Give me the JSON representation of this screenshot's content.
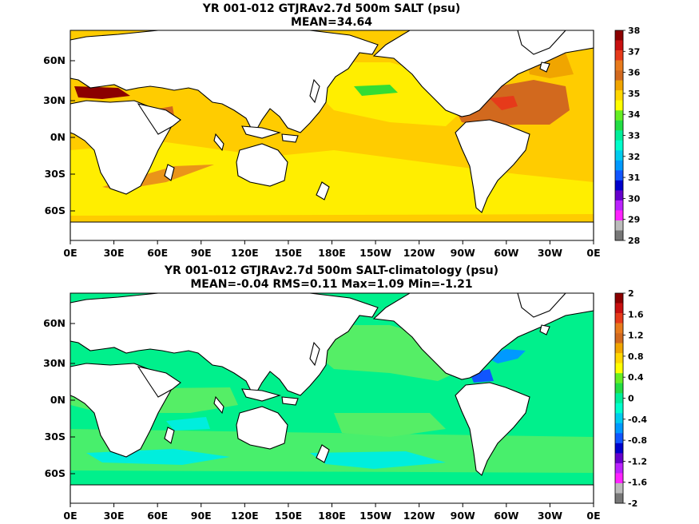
{
  "top_panel": {
    "title": "YR 001-012 GTJRAv2.7d 500m SALT (psu)",
    "subtitle": "MEAN=34.64",
    "lat_labels": [
      "60N",
      "30N",
      "0N",
      "30S",
      "60S"
    ],
    "lon_labels": [
      "0E",
      "30E",
      "60E",
      "90E",
      "120E",
      "150E",
      "180E",
      "150W",
      "120W",
      "90W",
      "60W",
      "30W",
      "0E"
    ],
    "colorbar": {
      "labels": [
        "38",
        "37",
        "36",
        "35",
        "34",
        "33",
        "32",
        "31",
        "30",
        "29",
        "28"
      ],
      "colors": [
        "#8b0000",
        "#c81010",
        "#e63a1a",
        "#e87a1c",
        "#d2691e",
        "#f0a500",
        "#ffd700",
        "#ffff00",
        "#66ee22",
        "#22dd44",
        "#00ee99",
        "#00ffcc",
        "#00ccee",
        "#0099ff",
        "#1155ff",
        "#0000cc",
        "#6600cc",
        "#bb22ff",
        "#ff22ff",
        "#bbbbbb",
        "#777777"
      ]
    }
  },
  "bottom_panel": {
    "title": "YR 001-012 GTJRAv2.7d 500m SALT-climatology (psu)",
    "subtitle": "MEAN=-0.04   RMS=0.11   Max=1.09   Min=-1.21",
    "lat_labels": [
      "60N",
      "30N",
      "0N",
      "30S",
      "60S"
    ],
    "lon_labels": [
      "0E",
      "30E",
      "60E",
      "90E",
      "120E",
      "150E",
      "180E",
      "150W",
      "120W",
      "90W",
      "60W",
      "30W",
      "0E"
    ],
    "colorbar": {
      "labels": [
        "2",
        "1.6",
        "1.2",
        "0.8",
        "0.4",
        "0",
        "-0.4",
        "-0.8",
        "-1.2",
        "-1.6",
        "-2"
      ],
      "colors": [
        "#8b0000",
        "#c81010",
        "#e63a1a",
        "#e87a1c",
        "#d2691e",
        "#f0a500",
        "#ffd700",
        "#ffff00",
        "#66ee22",
        "#22dd44",
        "#00ee99",
        "#00ffcc",
        "#00ccee",
        "#0099ff",
        "#1155ff",
        "#0000cc",
        "#6600cc",
        "#bb22ff",
        "#ff22ff",
        "#bbbbbb",
        "#777777"
      ]
    }
  },
  "colors": {
    "top_base": "#ffcc00",
    "top_high": "#ffee00",
    "top_atlantic": "#d2691e",
    "top_med": "#8b0000",
    "top_fresh": "#33dd33",
    "bottom_base": "#00f08c",
    "bottom_pos": "#66ee22",
    "bottom_neg": "#00eedd",
    "bottom_strong_neg": "#0099ff",
    "land": "#ffffff"
  }
}
